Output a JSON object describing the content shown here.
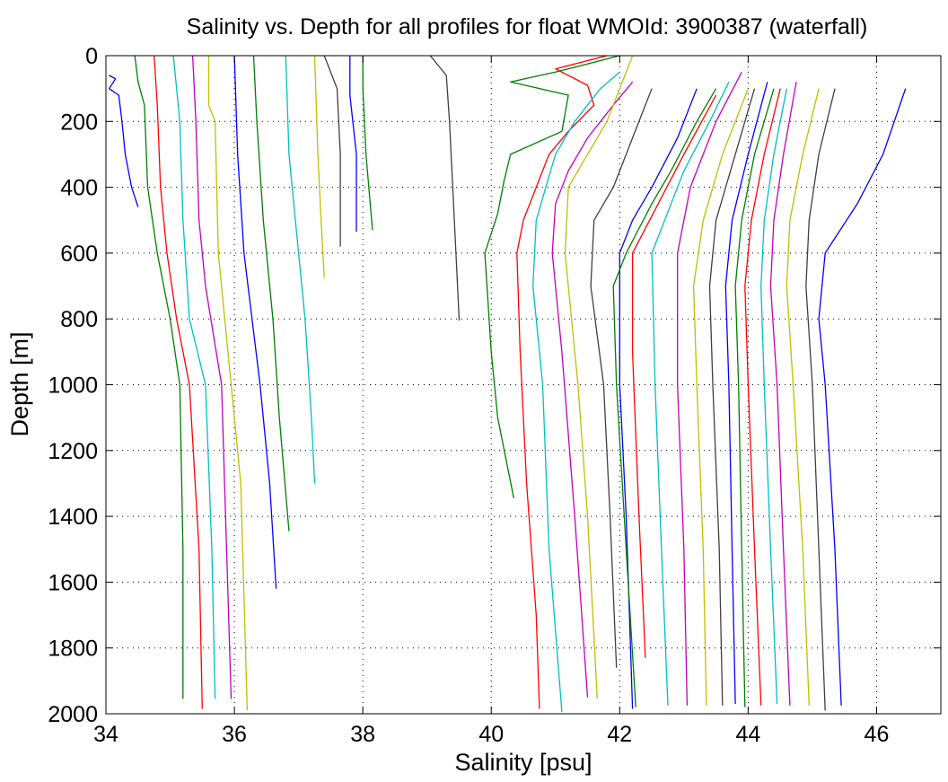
{
  "chart_data": {
    "type": "line",
    "title": "Salinity vs. Depth for all profiles for float WMOId: 3900387 (waterfall)",
    "xlabel": "Salinity [psu]",
    "ylabel": "Depth [m]",
    "xlim": [
      34,
      47
    ],
    "ylim": [
      2000,
      0
    ],
    "y_reversed": true,
    "x_ticks": [
      34,
      36,
      38,
      40,
      42,
      44,
      46
    ],
    "y_ticks": [
      0,
      200,
      400,
      600,
      800,
      1000,
      1200,
      1400,
      1600,
      1800,
      2000
    ],
    "grid": true,
    "legend": "none",
    "colors": [
      "#0000ff",
      "#007f00",
      "#ff0000",
      "#00bfbf",
      "#bf00bf",
      "#bfbf00",
      "#404040"
    ],
    "series": [
      {
        "color": "#0000ff",
        "points": [
          [
            34.05,
            60
          ],
          [
            34.15,
            70
          ],
          [
            34.05,
            100
          ],
          [
            34.2,
            120
          ],
          [
            34.25,
            200
          ],
          [
            34.3,
            300
          ],
          [
            34.4,
            400
          ],
          [
            34.5,
            460
          ]
        ]
      },
      {
        "color": "#007f00",
        "points": [
          [
            34.45,
            0
          ],
          [
            34.5,
            80
          ],
          [
            34.6,
            150
          ],
          [
            34.65,
            400
          ],
          [
            34.8,
            600
          ],
          [
            35.0,
            800
          ],
          [
            35.15,
            1000
          ],
          [
            35.2,
            1500
          ],
          [
            35.2,
            1955
          ]
        ]
      },
      {
        "color": "#ff0000",
        "points": [
          [
            34.75,
            0
          ],
          [
            34.8,
            150
          ],
          [
            34.85,
            400
          ],
          [
            34.95,
            600
          ],
          [
            35.1,
            800
          ],
          [
            35.3,
            1000
          ],
          [
            35.45,
            1500
          ],
          [
            35.5,
            1985
          ]
        ]
      },
      {
        "color": "#00bfbf",
        "points": [
          [
            35.05,
            0
          ],
          [
            35.15,
            200
          ],
          [
            35.2,
            500
          ],
          [
            35.3,
            800
          ],
          [
            35.55,
            1000
          ],
          [
            35.65,
            1500
          ],
          [
            35.7,
            1955
          ]
        ]
      },
      {
        "color": "#bf00bf",
        "points": [
          [
            35.35,
            0
          ],
          [
            35.4,
            200
          ],
          [
            35.45,
            500
          ],
          [
            35.55,
            700
          ],
          [
            35.8,
            1000
          ],
          [
            35.95,
            1955
          ]
        ]
      },
      {
        "color": "#bfbf00",
        "points": [
          [
            35.6,
            0
          ],
          [
            35.6,
            150
          ],
          [
            35.7,
            200
          ],
          [
            35.75,
            600
          ],
          [
            35.9,
            900
          ],
          [
            36.1,
            1300
          ],
          [
            36.2,
            1990
          ]
        ]
      },
      {
        "color": "#0000ff",
        "points": [
          [
            36.0,
            0
          ],
          [
            36.05,
            300
          ],
          [
            36.15,
            600
          ],
          [
            36.4,
            1000
          ],
          [
            36.55,
            1300
          ],
          [
            36.65,
            1620
          ]
        ]
      },
      {
        "color": "#007f00",
        "points": [
          [
            36.3,
            0
          ],
          [
            36.35,
            200
          ],
          [
            36.45,
            500
          ],
          [
            36.6,
            800
          ],
          [
            36.7,
            1100
          ],
          [
            36.85,
            1445
          ]
        ]
      },
      {
        "color": "#00bfbf",
        "points": [
          [
            36.8,
            0
          ],
          [
            36.85,
            300
          ],
          [
            36.95,
            500
          ],
          [
            37.1,
            800
          ],
          [
            37.2,
            1100
          ],
          [
            37.25,
            1300
          ]
        ]
      },
      {
        "color": "#bfbf00",
        "points": [
          [
            37.25,
            0
          ],
          [
            37.3,
            300
          ],
          [
            37.35,
            500
          ],
          [
            37.4,
            675
          ]
        ]
      },
      {
        "color": "#404040",
        "points": [
          [
            37.4,
            0
          ],
          [
            37.6,
            100
          ],
          [
            37.65,
            300
          ],
          [
            37.65,
            580
          ]
        ]
      },
      {
        "color": "#0000ff",
        "points": [
          [
            37.8,
            0
          ],
          [
            37.8,
            120
          ],
          [
            37.9,
            300
          ],
          [
            37.9,
            535
          ]
        ]
      },
      {
        "color": "#007f00",
        "points": [
          [
            38.0,
            0
          ],
          [
            38.0,
            100
          ],
          [
            38.05,
            300
          ],
          [
            38.15,
            530
          ]
        ]
      },
      {
        "color": "#404040",
        "points": [
          [
            39.05,
            0
          ],
          [
            39.3,
            60
          ],
          [
            39.35,
            200
          ],
          [
            39.4,
            400
          ],
          [
            39.45,
            600
          ],
          [
            39.5,
            805
          ]
        ]
      },
      {
        "color": "#007f00",
        "points": [
          [
            42.0,
            0
          ],
          [
            41.0,
            50
          ],
          [
            40.3,
            80
          ],
          [
            41.2,
            120
          ],
          [
            41.1,
            230
          ],
          [
            40.3,
            300
          ],
          [
            40.2,
            380
          ],
          [
            40.1,
            480
          ],
          [
            39.9,
            600
          ],
          [
            40.0,
            900
          ],
          [
            40.1,
            1100
          ],
          [
            40.35,
            1345
          ]
        ]
      },
      {
        "color": "#ff0000",
        "points": [
          [
            41.8,
            0
          ],
          [
            41.0,
            40
          ],
          [
            41.5,
            90
          ],
          [
            41.6,
            150
          ],
          [
            41.2,
            230
          ],
          [
            40.9,
            300
          ],
          [
            40.7,
            400
          ],
          [
            40.5,
            500
          ],
          [
            40.4,
            600
          ],
          [
            40.45,
            900
          ],
          [
            40.55,
            1300
          ],
          [
            40.7,
            1700
          ],
          [
            40.75,
            1985
          ]
        ]
      },
      {
        "color": "#00bfbf",
        "points": [
          [
            42.0,
            50
          ],
          [
            41.7,
            100
          ],
          [
            41.3,
            200
          ],
          [
            41.0,
            300
          ],
          [
            40.85,
            400
          ],
          [
            40.7,
            500
          ],
          [
            40.65,
            700
          ],
          [
            40.8,
            1000
          ],
          [
            40.9,
            1500
          ],
          [
            41.1,
            1995
          ]
        ]
      },
      {
        "color": "#bf00bf",
        "points": [
          [
            42.2,
            80
          ],
          [
            41.9,
            150
          ],
          [
            41.5,
            250
          ],
          [
            41.2,
            350
          ],
          [
            41.0,
            450
          ],
          [
            40.95,
            600
          ],
          [
            41.1,
            900
          ],
          [
            41.3,
            1400
          ],
          [
            41.5,
            1950
          ]
        ]
      },
      {
        "color": "#bfbf00",
        "points": [
          [
            42.2,
            0
          ],
          [
            42.0,
            100
          ],
          [
            41.8,
            200
          ],
          [
            41.5,
            300
          ],
          [
            41.2,
            400
          ],
          [
            41.15,
            600
          ],
          [
            41.35,
            1000
          ],
          [
            41.5,
            1400
          ],
          [
            41.65,
            1955
          ]
        ]
      },
      {
        "color": "#404040",
        "points": [
          [
            42.5,
            100
          ],
          [
            42.2,
            250
          ],
          [
            41.9,
            400
          ],
          [
            41.6,
            500
          ],
          [
            41.55,
            700
          ],
          [
            41.75,
            1000
          ],
          [
            41.85,
            1400
          ],
          [
            41.95,
            1860
          ]
        ]
      },
      {
        "color": "#0000ff",
        "points": [
          [
            43.2,
            100
          ],
          [
            42.9,
            250
          ],
          [
            42.5,
            400
          ],
          [
            42.2,
            500
          ],
          [
            42.0,
            600
          ],
          [
            42.0,
            1000
          ],
          [
            42.1,
            1400
          ],
          [
            42.2,
            1985
          ]
        ]
      },
      {
        "color": "#007f00",
        "points": [
          [
            43.5,
            100
          ],
          [
            43.2,
            200
          ],
          [
            42.8,
            350
          ],
          [
            42.5,
            450
          ],
          [
            42.1,
            600
          ],
          [
            41.9,
            700
          ],
          [
            41.95,
            1000
          ],
          [
            42.1,
            1500
          ],
          [
            42.25,
            1980
          ]
        ]
      },
      {
        "color": "#ff0000",
        "points": [
          [
            43.5,
            120
          ],
          [
            43.0,
            300
          ],
          [
            42.6,
            450
          ],
          [
            42.2,
            600
          ],
          [
            42.2,
            900
          ],
          [
            42.3,
            1400
          ],
          [
            42.4,
            1830
          ]
        ]
      },
      {
        "color": "#00bfbf",
        "points": [
          [
            43.7,
            80
          ],
          [
            43.4,
            200
          ],
          [
            43.0,
            350
          ],
          [
            42.7,
            500
          ],
          [
            42.5,
            600
          ],
          [
            42.55,
            1000
          ],
          [
            42.65,
            1500
          ],
          [
            42.75,
            1975
          ]
        ]
      },
      {
        "color": "#bf00bf",
        "points": [
          [
            43.9,
            50
          ],
          [
            43.5,
            200
          ],
          [
            43.1,
            400
          ],
          [
            42.9,
            600
          ],
          [
            42.9,
            1000
          ],
          [
            43.0,
            1500
          ],
          [
            43.05,
            1975
          ]
        ]
      },
      {
        "color": "#bfbf00",
        "points": [
          [
            44.0,
            100
          ],
          [
            43.6,
            300
          ],
          [
            43.3,
            500
          ],
          [
            43.15,
            700
          ],
          [
            43.2,
            1000
          ],
          [
            43.3,
            1500
          ],
          [
            43.35,
            1975
          ]
        ]
      },
      {
        "color": "#404040",
        "points": [
          [
            44.1,
            100
          ],
          [
            43.8,
            300
          ],
          [
            43.5,
            500
          ],
          [
            43.4,
            700
          ],
          [
            43.45,
            1000
          ],
          [
            43.55,
            1500
          ],
          [
            43.6,
            1975
          ]
        ]
      },
      {
        "color": "#0000ff",
        "points": [
          [
            44.3,
            80
          ],
          [
            44.0,
            300
          ],
          [
            43.75,
            500
          ],
          [
            43.65,
            700
          ],
          [
            43.7,
            1000
          ],
          [
            43.75,
            1500
          ],
          [
            43.8,
            1970
          ]
        ]
      },
      {
        "color": "#007f00",
        "points": [
          [
            44.4,
            100
          ],
          [
            44.1,
            300
          ],
          [
            43.9,
            500
          ],
          [
            43.8,
            700
          ],
          [
            43.85,
            1000
          ],
          [
            43.9,
            1500
          ],
          [
            43.95,
            1980
          ]
        ]
      },
      {
        "color": "#ff0000",
        "points": [
          [
            44.5,
            100
          ],
          [
            44.25,
            300
          ],
          [
            44.05,
            500
          ],
          [
            43.95,
            700
          ],
          [
            44.0,
            1000
          ],
          [
            44.1,
            1500
          ],
          [
            44.2,
            1975
          ]
        ]
      },
      {
        "color": "#00bfbf",
        "points": [
          [
            44.6,
            100
          ],
          [
            44.4,
            300
          ],
          [
            44.25,
            500
          ],
          [
            44.2,
            700
          ],
          [
            44.25,
            1000
          ],
          [
            44.35,
            1500
          ],
          [
            44.45,
            1970
          ]
        ]
      },
      {
        "color": "#bf00bf",
        "points": [
          [
            44.75,
            80
          ],
          [
            44.55,
            300
          ],
          [
            44.4,
            500
          ],
          [
            44.35,
            700
          ],
          [
            44.45,
            1000
          ],
          [
            44.55,
            1500
          ],
          [
            44.65,
            1975
          ]
        ]
      },
      {
        "color": "#bfbf00",
        "points": [
          [
            45.1,
            100
          ],
          [
            44.85,
            300
          ],
          [
            44.65,
            500
          ],
          [
            44.6,
            700
          ],
          [
            44.7,
            1000
          ],
          [
            44.85,
            1500
          ],
          [
            44.95,
            1975
          ]
        ]
      },
      {
        "color": "#404040",
        "points": [
          [
            45.35,
            100
          ],
          [
            45.1,
            300
          ],
          [
            44.95,
            500
          ],
          [
            44.9,
            700
          ],
          [
            45.0,
            1000
          ],
          [
            45.1,
            1500
          ],
          [
            45.2,
            1990
          ]
        ]
      },
      {
        "color": "#0000ff",
        "points": [
          [
            46.45,
            100
          ],
          [
            46.1,
            300
          ],
          [
            45.7,
            450
          ],
          [
            45.2,
            600
          ],
          [
            45.1,
            800
          ],
          [
            45.2,
            1000
          ],
          [
            45.35,
            1500
          ],
          [
            45.45,
            1975
          ]
        ]
      }
    ]
  }
}
